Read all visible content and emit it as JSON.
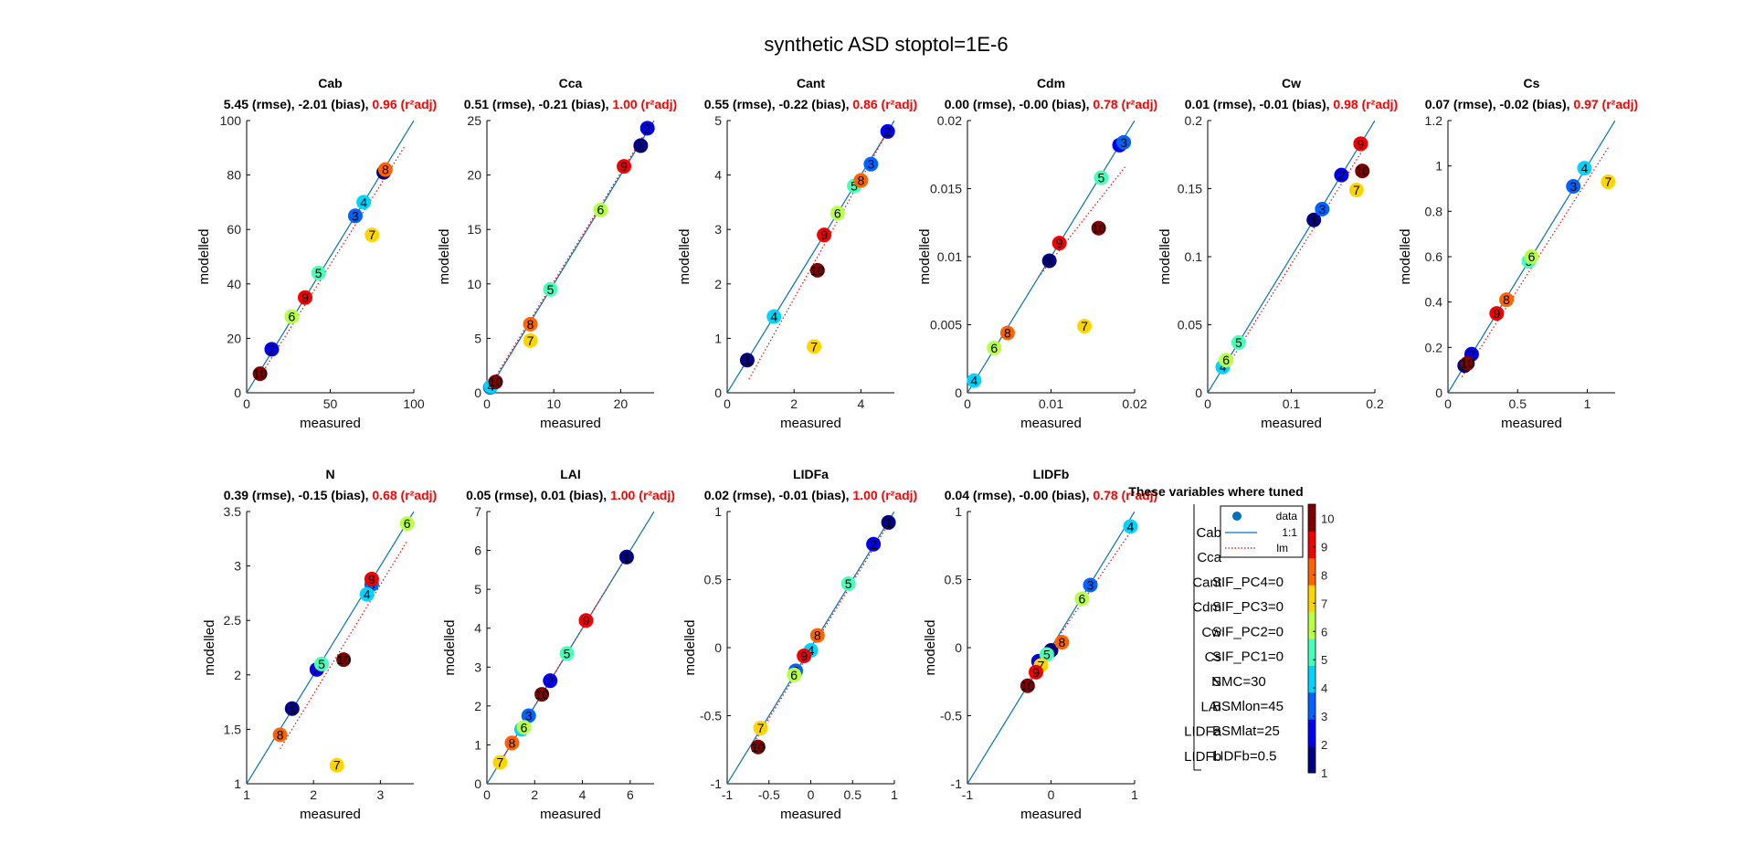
{
  "figure": {
    "title": "synthetic ASD stoptol=1E-6",
    "xlabel": "measured",
    "ylabel": "modelled"
  },
  "legend": {
    "entries": [
      {
        "name": "data",
        "marker": "dot",
        "color": "#0072BD"
      },
      {
        "name": "1:1",
        "line": "solid",
        "color": "#0072BD"
      },
      {
        "name": "lm",
        "line": "dotted",
        "color": "#FF0000"
      }
    ]
  },
  "tuned_box": {
    "title": "These variables where tuned",
    "names": [
      "Cab",
      "Cca",
      "Cant",
      "Cdm",
      "Cw",
      "Cs",
      "N",
      "LAI",
      "LIDFa",
      "LIDFb"
    ],
    "settings": [
      "SIF_PC4=0",
      "SIF_PC3=0",
      "SIF_PC2=0",
      "SIF_PC1=0",
      "SMC=30",
      "BSMlon=45",
      "BSMlat=25",
      "LIDFb=0.5"
    ]
  },
  "colorbar": {
    "ticks": [
      "1",
      "2",
      "3",
      "4",
      "5",
      "6",
      "7",
      "8",
      "9",
      "10"
    ],
    "range": [
      1,
      10.5
    ]
  },
  "colors": {
    "one_to_one": "#0072BD",
    "lm": "#FF0000",
    "r2": "#FF0000",
    "point_label": "#000000"
  },
  "chart_data": [
    {
      "type": "scatter",
      "title": "Cab",
      "stats": {
        "rmse": "5.45 (rmse),",
        "bias": "-2.01 (bias),",
        "r2": "0.96 (r²adj)"
      },
      "xlim": [
        0,
        100
      ],
      "ylim": [
        0,
        100
      ],
      "xticks": [
        "0",
        "50",
        "100"
      ],
      "yticks": [
        "0",
        "20",
        "40",
        "60",
        "80",
        "100"
      ],
      "x": [
        82,
        15,
        65,
        70,
        43,
        27,
        75,
        83,
        35,
        8
      ],
      "y": [
        81,
        16,
        65,
        70,
        44,
        28,
        58,
        82,
        35,
        7
      ],
      "lm": [
        [
          10,
          8
        ],
        [
          95,
          91
        ]
      ]
    },
    {
      "type": "scatter",
      "title": "Cca",
      "stats": {
        "rmse": "0.51 (rmse),",
        "bias": "-0.21 (bias),",
        "r2": "1.00 (r²adj)"
      },
      "xlim": [
        0,
        25
      ],
      "ylim": [
        0,
        25
      ],
      "xticks": [
        "0",
        "10",
        "20"
      ],
      "yticks": [
        "0",
        "5",
        "10",
        "15",
        "20",
        "25"
      ],
      "x": [
        23,
        24,
        0.5,
        0.6,
        9.5,
        17,
        6.5,
        6.5,
        20.5,
        1.3
      ],
      "y": [
        22.7,
        24.3,
        0.5,
        0.6,
        9.5,
        16.8,
        4.8,
        6.3,
        20.8,
        1.0
      ],
      "lm": [
        [
          0,
          0.2
        ],
        [
          24,
          24.2
        ]
      ]
    },
    {
      "type": "scatter",
      "title": "Cant",
      "stats": {
        "rmse": "0.55 (rmse),",
        "bias": "-0.22 (bias),",
        "r2": "0.86 (r²adj)"
      },
      "xlim": [
        0,
        5
      ],
      "ylim": [
        0,
        5
      ],
      "xticks": [
        "0",
        "2",
        "4"
      ],
      "yticks": [
        "0",
        "1",
        "2",
        "3",
        "4",
        "5"
      ],
      "x": [
        0.6,
        4.8,
        4.3,
        1.4,
        3.8,
        3.3,
        2.6,
        4.0,
        2.9,
        2.7
      ],
      "y": [
        0.6,
        4.8,
        4.2,
        1.4,
        3.8,
        3.3,
        0.85,
        3.9,
        2.9,
        2.25
      ],
      "lm": [
        [
          0.65,
          0.25
        ],
        [
          4.8,
          4.8
        ]
      ]
    },
    {
      "type": "scatter",
      "title": "Cdm",
      "stats": {
        "rmse": "0.00 (rmse),",
        "bias": "-0.00 (bias),",
        "r2": "0.78 (r²adj)"
      },
      "xlim": [
        0,
        0.02
      ],
      "ylim": [
        0,
        0.02
      ],
      "xticks": [
        "0",
        "0.01",
        "0.02"
      ],
      "yticks": [
        "0",
        "0.005",
        "0.01",
        "0.015",
        "0.02"
      ],
      "x": [
        0.0098,
        0.0182,
        0.0187,
        0.0008,
        0.016,
        0.0032,
        0.014,
        0.0048,
        0.011,
        0.0157
      ],
      "y": [
        0.0097,
        0.0182,
        0.0184,
        0.0009,
        0.0158,
        0.0033,
        0.0049,
        0.0044,
        0.011,
        0.0121
      ],
      "lm": [
        [
          0.0085,
          0.0085
        ],
        [
          0.019,
          0.0167
        ]
      ]
    },
    {
      "type": "scatter",
      "title": "Cw",
      "stats": {
        "rmse": "0.01 (rmse),",
        "bias": "-0.01 (bias),",
        "r2": "0.98 (r²adj)"
      },
      "xlim": [
        0,
        0.2
      ],
      "ylim": [
        0,
        0.2
      ],
      "xticks": [
        "0",
        "0.1",
        "0.2"
      ],
      "yticks": [
        "0",
        "0.05",
        "0.1",
        "0.15",
        "0.2"
      ],
      "x": [
        0.127,
        0.16,
        0.137,
        0.018,
        0.037,
        0.022,
        0.178,
        0.183,
        0.183,
        0.185
      ],
      "y": [
        0.127,
        0.16,
        0.135,
        0.019,
        0.037,
        0.024,
        0.149,
        0.183,
        0.183,
        0.163
      ],
      "lm": [
        [
          0.02,
          0.016
        ],
        [
          0.185,
          0.178
        ]
      ]
    },
    {
      "type": "scatter",
      "title": "Cs",
      "stats": {
        "rmse": "0.07 (rmse),",
        "bias": "-0.02 (bias),",
        "r2": "0.97 (r²adj)"
      },
      "xlim": [
        0,
        1.2
      ],
      "ylim": [
        0,
        1.2
      ],
      "xticks": [
        "0",
        "0.5",
        "1"
      ],
      "yticks": [
        "0",
        "0.2",
        "0.4",
        "0.6",
        "0.8",
        "1",
        "1.2"
      ],
      "x": [
        0.12,
        0.17,
        0.9,
        0.98,
        0.58,
        0.6,
        1.15,
        0.42,
        0.35,
        0.14
      ],
      "y": [
        0.12,
        0.17,
        0.91,
        0.99,
        0.58,
        0.6,
        0.93,
        0.41,
        0.35,
        0.13
      ],
      "lm": [
        [
          0.1,
          0.07
        ],
        [
          1.15,
          1.08
        ]
      ]
    },
    {
      "type": "scatter",
      "title": "N",
      "stats": {
        "rmse": "0.39 (rmse),",
        "bias": "-0.15 (bias),",
        "r2": "0.68 (r²adj)"
      },
      "xlim": [
        1,
        3.5
      ],
      "ylim": [
        1,
        3.5
      ],
      "xticks": [
        "1",
        "2",
        "3"
      ],
      "yticks": [
        "1",
        "1.5",
        "2",
        "2.5",
        "3",
        "3.5"
      ],
      "x": [
        1.68,
        2.05,
        2.87,
        2.8,
        2.12,
        3.4,
        2.35,
        1.5,
        2.87,
        2.45
      ],
      "y": [
        1.69,
        2.05,
        2.83,
        2.74,
        2.1,
        3.39,
        1.17,
        1.45,
        2.88,
        2.14
      ],
      "lm": [
        [
          1.5,
          1.32
        ],
        [
          3.4,
          3.23
        ]
      ]
    },
    {
      "type": "scatter",
      "title": "LAI",
      "stats": {
        "rmse": "0.05 (rmse),",
        "bias": "0.01 (bias),",
        "r2": "1.00 (r²adj)"
      },
      "xlim": [
        0,
        7
      ],
      "ylim": [
        0,
        7
      ],
      "xticks": [
        "0",
        "2",
        "4",
        "6"
      ],
      "yticks": [
        "0",
        "1",
        "2",
        "3",
        "4",
        "5",
        "6",
        "7"
      ],
      "x": [
        5.85,
        2.65,
        1.75,
        1.45,
        3.35,
        1.55,
        0.55,
        1.05,
        4.15,
        2.3
      ],
      "y": [
        5.83,
        2.65,
        1.75,
        1.4,
        3.35,
        1.45,
        0.55,
        1.05,
        4.2,
        2.3
      ],
      "lm": [
        [
          0.4,
          0.4
        ],
        [
          5.9,
          5.9
        ]
      ]
    },
    {
      "type": "scatter",
      "title": "LIDFa",
      "stats": {
        "rmse": "0.02 (rmse),",
        "bias": "-0.01 (bias),",
        "r2": "1.00 (r²adj)"
      },
      "xlim": [
        -1,
        1
      ],
      "ylim": [
        -1,
        1
      ],
      "xticks": [
        "-1",
        "-0.5",
        "0",
        "0.5",
        "1"
      ],
      "yticks": [
        "-1",
        "-0.5",
        "0",
        "0.5",
        "1"
      ],
      "x": [
        0.93,
        0.75,
        -0.18,
        0.0,
        0.45,
        -0.2,
        -0.6,
        0.08,
        -0.08,
        -0.63
      ],
      "y": [
        0.92,
        0.76,
        -0.17,
        -0.02,
        0.47,
        -0.2,
        -0.59,
        0.09,
        -0.06,
        -0.73
      ],
      "lm": [
        [
          -0.7,
          -0.72
        ],
        [
          0.95,
          0.93
        ]
      ]
    },
    {
      "type": "scatter",
      "title": "LIDFb",
      "stats": {
        "rmse": "0.04 (rmse),",
        "bias": "-0.00 (bias),",
        "r2": "0.78 (r²adj)"
      },
      "xlim": [
        -1,
        1
      ],
      "ylim": [
        -1,
        1
      ],
      "xticks": [
        "-1",
        "0",
        "1"
      ],
      "yticks": [
        "-1",
        "-0.5",
        "0",
        "0.5",
        "1"
      ],
      "x": [
        0.0,
        -0.15,
        0.47,
        0.95,
        -0.05,
        0.37,
        -0.12,
        0.13,
        -0.18,
        -0.28
      ],
      "y": [
        -0.02,
        -0.1,
        0.46,
        0.89,
        -0.05,
        0.36,
        -0.13,
        0.04,
        -0.18,
        -0.28
      ],
      "lm": [
        [
          -0.3,
          -0.27
        ],
        [
          0.95,
          0.85
        ]
      ]
    }
  ]
}
